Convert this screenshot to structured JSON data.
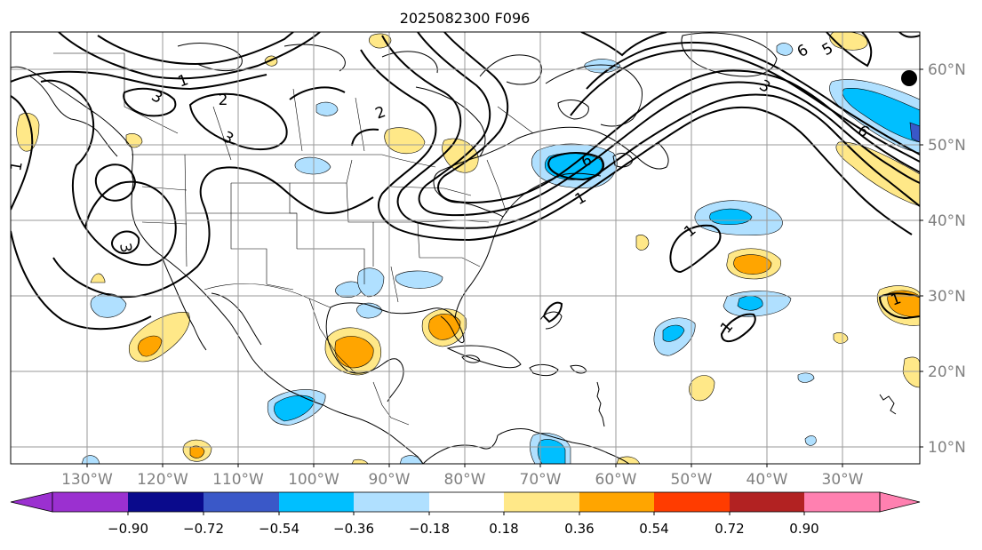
{
  "title": "2025082300 F096",
  "longitude_labels": [
    "130°W",
    "120°W",
    "110°W",
    "100°W",
    "90°W",
    "80°W",
    "70°W",
    "60°W",
    "50°W",
    "40°W",
    "30°W"
  ],
  "latitude_labels": [
    "60°N",
    "50°N",
    "40°N",
    "30°N",
    "20°N",
    "10°N"
  ],
  "colorbar": {
    "tick_labels": [
      "−0.90",
      "−0.72",
      "−0.54",
      "−0.36",
      "−0.18",
      "0.18",
      "0.36",
      "0.54",
      "0.72",
      "0.90"
    ],
    "colors": [
      "#9b30d0",
      "#0a0a8c",
      "#3a58c8",
      "#00bfff",
      "#b0e0ff",
      "#ffffff",
      "#ffe888",
      "#ffa500",
      "#ff3c00",
      "#b22222",
      "#ff80b0"
    ]
  },
  "contour_labels": [
    "1",
    "2",
    "3",
    "3",
    "1",
    "2",
    "3",
    "6",
    "5",
    "6",
    "1",
    "1",
    "1",
    "3",
    "1",
    "6"
  ],
  "colors": {
    "pos_light": "#ffe888",
    "pos_mid": "#ffa500",
    "neg_light": "#b0e0ff",
    "neg_mid": "#00bfff",
    "neg_dark": "#3a58c8",
    "grid": "#9a9a9a",
    "axis_label": "#808080"
  }
}
